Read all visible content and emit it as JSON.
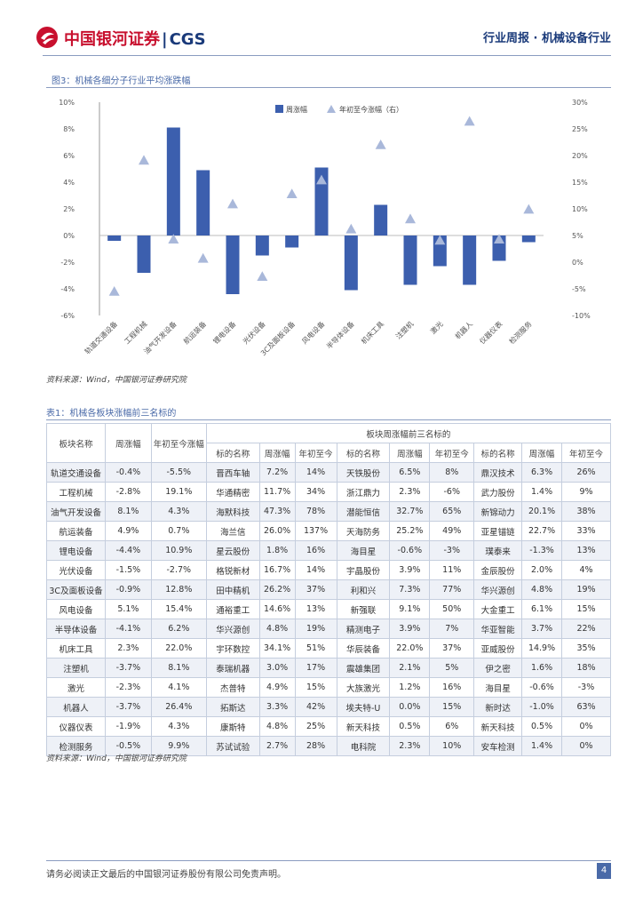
{
  "header": {
    "logo_cn": "中国银河证券",
    "logo_sep": "|",
    "logo_en": "CGS",
    "right": "行业周报 · 机械设备行业"
  },
  "figure": {
    "title": "图3：机械各细分子行业平均涨跌幅",
    "source": "资料来源：Wind，中国银河证券研究院"
  },
  "chart_data": {
    "type": "bar",
    "title": "",
    "categories": [
      "轨道交通设备",
      "工程机械",
      "油气开发设备",
      "航运装备",
      "锂电设备",
      "光伏设备",
      "3C及面板设备",
      "风电设备",
      "半导体设备",
      "机床工具",
      "注塑机",
      "激光",
      "机器人",
      "仪器仪表",
      "检测服务"
    ],
    "series": [
      {
        "name": "周涨幅",
        "axis": "left",
        "type": "bar",
        "values": [
          -0.4,
          -2.8,
          8.1,
          4.9,
          -4.4,
          -1.5,
          -0.9,
          5.1,
          -4.1,
          2.3,
          -3.7,
          -2.3,
          -3.7,
          -1.9,
          -0.5
        ]
      },
      {
        "name": "年初至今涨幅（右）",
        "axis": "right",
        "type": "scatter",
        "values": [
          -5.5,
          19.1,
          4.3,
          0.7,
          10.9,
          -2.7,
          12.8,
          15.4,
          6.2,
          22.0,
          8.1,
          4.1,
          26.4,
          4.3,
          9.9
        ]
      }
    ],
    "ylim_left": [
      -6,
      10
    ],
    "ylim_right": [
      -10,
      30
    ],
    "yticks_left": [
      "10%",
      "8%",
      "6%",
      "4%",
      "2%",
      "0%",
      "-2%",
      "-4%",
      "-6%"
    ],
    "yticks_right": [
      "30%",
      "25%",
      "20%",
      "15%",
      "10%",
      "5%",
      "0%",
      "-5%",
      "-10%"
    ],
    "legend_position": "top-center",
    "colors": {
      "bar": "#3c5fae",
      "marker": "#a9b8da"
    }
  },
  "table": {
    "title": "表1：机械各板块涨幅前三名标的",
    "source": "资料来源：Wind，中国银河证券研究院",
    "group_header": "板块周涨幅前三名标的",
    "headers": [
      "板块名称",
      "周涨幅",
      "年初至今涨幅",
      "标的名称",
      "周涨幅",
      "年初至今",
      "标的名称",
      "周涨幅",
      "年初至今",
      "标的名称",
      "周涨幅",
      "年初至今"
    ],
    "rows": [
      [
        "轨道交通设备",
        "-0.4%",
        "-5.5%",
        "晋西车轴",
        "7.2%",
        "14%",
        "天铁股份",
        "6.5%",
        "8%",
        "鼎汉技术",
        "6.3%",
        "26%"
      ],
      [
        "工程机械",
        "-2.8%",
        "19.1%",
        "华通精密",
        "11.7%",
        "34%",
        "浙江鼎力",
        "2.3%",
        "-6%",
        "武力股份",
        "1.4%",
        "9%"
      ],
      [
        "油气开发设备",
        "8.1%",
        "4.3%",
        "海默科技",
        "47.3%",
        "78%",
        "潜能恒信",
        "32.7%",
        "65%",
        "新锦动力",
        "20.1%",
        "38%"
      ],
      [
        "航运装备",
        "4.9%",
        "0.7%",
        "海兰信",
        "26.0%",
        "137%",
        "天海防务",
        "25.2%",
        "49%",
        "亚星锚链",
        "22.7%",
        "33%"
      ],
      [
        "锂电设备",
        "-4.4%",
        "10.9%",
        "星云股份",
        "1.8%",
        "16%",
        "海目星",
        "-0.6%",
        "-3%",
        "璞泰来",
        "-1.3%",
        "13%"
      ],
      [
        "光伏设备",
        "-1.5%",
        "-2.7%",
        "格锐新材",
        "16.7%",
        "14%",
        "宇晶股份",
        "3.9%",
        "11%",
        "金辰股份",
        "2.0%",
        "4%"
      ],
      [
        "3C及面板设备",
        "-0.9%",
        "12.8%",
        "田中精机",
        "26.2%",
        "37%",
        "利和兴",
        "7.3%",
        "77%",
        "华兴源创",
        "4.8%",
        "19%"
      ],
      [
        "风电设备",
        "5.1%",
        "15.4%",
        "通裕重工",
        "14.6%",
        "13%",
        "新强联",
        "9.1%",
        "50%",
        "大金重工",
        "6.1%",
        "15%"
      ],
      [
        "半导体设备",
        "-4.1%",
        "6.2%",
        "华兴源创",
        "4.8%",
        "19%",
        "精测电子",
        "3.9%",
        "7%",
        "华亚智能",
        "3.7%",
        "22%"
      ],
      [
        "机床工具",
        "2.3%",
        "22.0%",
        "宇环数控",
        "34.1%",
        "51%",
        "华辰装备",
        "22.0%",
        "37%",
        "亚威股份",
        "14.9%",
        "35%"
      ],
      [
        "注塑机",
        "-3.7%",
        "8.1%",
        "泰瑞机器",
        "3.0%",
        "17%",
        "震雄集团",
        "2.1%",
        "5%",
        "伊之密",
        "1.6%",
        "18%"
      ],
      [
        "激光",
        "-2.3%",
        "4.1%",
        "杰普特",
        "4.9%",
        "15%",
        "大族激光",
        "1.2%",
        "16%",
        "海目星",
        "-0.6%",
        "-3%"
      ],
      [
        "机器人",
        "-3.7%",
        "26.4%",
        "拓斯达",
        "3.3%",
        "42%",
        "埃夫特-U",
        "0.0%",
        "15%",
        "新时达",
        "-1.0%",
        "63%"
      ],
      [
        "仪器仪表",
        "-1.9%",
        "4.3%",
        "康斯特",
        "4.8%",
        "25%",
        "新天科技",
        "0.5%",
        "6%",
        "新天科技",
        "0.5%",
        "0%"
      ],
      [
        "检测服务",
        "-0.5%",
        "9.9%",
        "苏试试验",
        "2.7%",
        "28%",
        "电科院",
        "2.3%",
        "10%",
        "安车检测",
        "1.4%",
        "0%"
      ]
    ]
  },
  "footer": {
    "text": "请务必阅读正文最后的中国银河证券股份有限公司免责声明。",
    "page": "4"
  }
}
